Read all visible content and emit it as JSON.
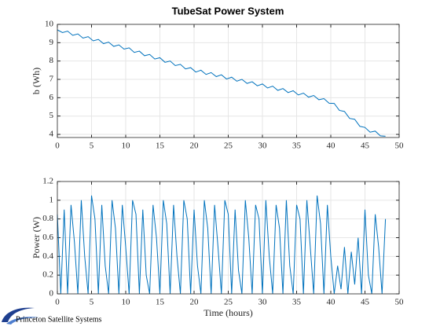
{
  "chart_data": [
    {
      "type": "line",
      "title": "TubeSat Power System",
      "ylabel": "b (Wh)",
      "x": [
        0,
        0.75,
        1.5,
        2.25,
        3,
        3.75,
        4.5,
        5.25,
        6,
        6.75,
        7.5,
        8.25,
        9,
        9.75,
        10.5,
        11.25,
        12,
        12.75,
        13.5,
        14.25,
        15,
        15.75,
        16.5,
        17.25,
        18,
        18.75,
        19.5,
        20.25,
        21,
        21.75,
        22.5,
        23.25,
        24,
        24.75,
        25.5,
        26.25,
        27,
        27.75,
        28.5,
        29.25,
        30,
        30.75,
        31.5,
        32.25,
        33,
        33.75,
        34.5,
        35.25,
        36,
        36.75,
        37.5,
        38.25,
        39,
        39.75,
        40.5,
        41.25,
        42,
        42.75,
        43.5,
        44.25,
        45,
        45.75,
        46.5,
        47.25,
        48
      ],
      "series": [
        {
          "color": "#0072bd",
          "values": [
            9.7,
            9.55,
            9.63,
            9.4,
            9.48,
            9.25,
            9.33,
            9.1,
            9.18,
            8.95,
            9.03,
            8.8,
            8.88,
            8.65,
            8.72,
            8.47,
            8.54,
            8.29,
            8.36,
            8.11,
            8.18,
            7.93,
            8.0,
            7.75,
            7.82,
            7.57,
            7.64,
            7.4,
            7.5,
            7.27,
            7.37,
            7.15,
            7.25,
            7.02,
            7.12,
            6.9,
            7.0,
            6.78,
            6.87,
            6.65,
            6.75,
            6.53,
            6.63,
            6.4,
            6.5,
            6.28,
            6.38,
            6.15,
            6.25,
            6.03,
            6.12,
            5.89,
            5.95,
            5.7,
            5.69,
            5.31,
            5.25,
            4.87,
            4.82,
            4.44,
            4.38,
            4.12,
            4.18,
            3.92,
            3.9
          ]
        }
      ],
      "xlim": [
        0,
        50
      ],
      "xticks": [
        0,
        5,
        10,
        15,
        20,
        25,
        30,
        35,
        40,
        45,
        50
      ],
      "ylim": [
        3.83,
        10
      ],
      "yticks": [
        4,
        5,
        6,
        7,
        8,
        9,
        10
      ],
      "grid": true
    },
    {
      "type": "line",
      "xlabel": "Time (hours)",
      "ylabel": "Power (W)",
      "x": [
        0,
        0.5,
        1,
        1.5,
        2,
        2.5,
        3,
        3.5,
        4,
        4.5,
        5,
        5.5,
        6,
        6.5,
        7,
        7.5,
        8,
        8.5,
        9,
        9.5,
        10,
        10.5,
        11,
        11.5,
        12,
        12.5,
        13,
        13.5,
        14,
        14.5,
        15,
        15.5,
        16,
        16.5,
        17,
        17.5,
        18,
        18.5,
        19,
        19.5,
        20,
        20.5,
        21,
        21.5,
        22,
        22.5,
        23,
        23.5,
        24,
        24.5,
        25,
        25.5,
        26,
        26.5,
        27,
        27.5,
        28,
        28.5,
        29,
        29.5,
        30,
        30.5,
        31,
        31.5,
        32,
        32.5,
        33,
        33.5,
        34,
        34.5,
        35,
        35.5,
        36,
        36.5,
        37,
        37.5,
        38,
        38.5,
        39,
        39.5,
        40,
        40.5,
        41,
        41.5,
        42,
        42.5,
        43,
        43.5,
        44,
        44.5,
        45,
        45.5,
        46,
        46.5,
        47,
        47.5,
        48
      ],
      "series": [
        {
          "color": "#0072bd",
          "values": [
            0.85,
            0,
            0.9,
            0,
            0.95,
            0.55,
            0,
            1.0,
            0.4,
            0,
            1.05,
            0.8,
            0,
            0.95,
            0.3,
            0,
            1.0,
            0.7,
            0,
            0.95,
            0.5,
            0,
            1.0,
            0.85,
            0,
            0.9,
            0.2,
            0,
            0.95,
            0.6,
            0,
            1.0,
            0.75,
            0,
            0.95,
            0.4,
            0,
            1.0,
            0.8,
            0,
            0.9,
            0.3,
            0,
            1.0,
            0.7,
            0,
            0.95,
            0.5,
            0,
            1.0,
            0.85,
            0,
            0.9,
            0.25,
            0,
            1.0,
            0.6,
            0,
            0.95,
            0.8,
            0,
            1.0,
            0.4,
            0,
            0.95,
            0.7,
            0,
            1.0,
            0.3,
            0,
            0.95,
            0.8,
            0,
            1.0,
            0.5,
            0,
            1.05,
            0.75,
            0,
            0.95,
            0.4,
            0,
            0.3,
            0.05,
            0.5,
            0,
            0.45,
            0.1,
            0.6,
            0,
            0.9,
            0.2,
            0,
            0.85,
            0.5,
            0,
            0.8
          ]
        }
      ],
      "xlim": [
        0,
        50
      ],
      "xticks": [
        0,
        5,
        10,
        15,
        20,
        25,
        30,
        35,
        40,
        45,
        50
      ],
      "ylim": [
        0,
        1.2
      ],
      "yticks": [
        0,
        0.2,
        0.4,
        0.6,
        0.8,
        1,
        1.2
      ],
      "grid": true
    }
  ],
  "logo": {
    "text": "Princeton Satellite Systems"
  }
}
